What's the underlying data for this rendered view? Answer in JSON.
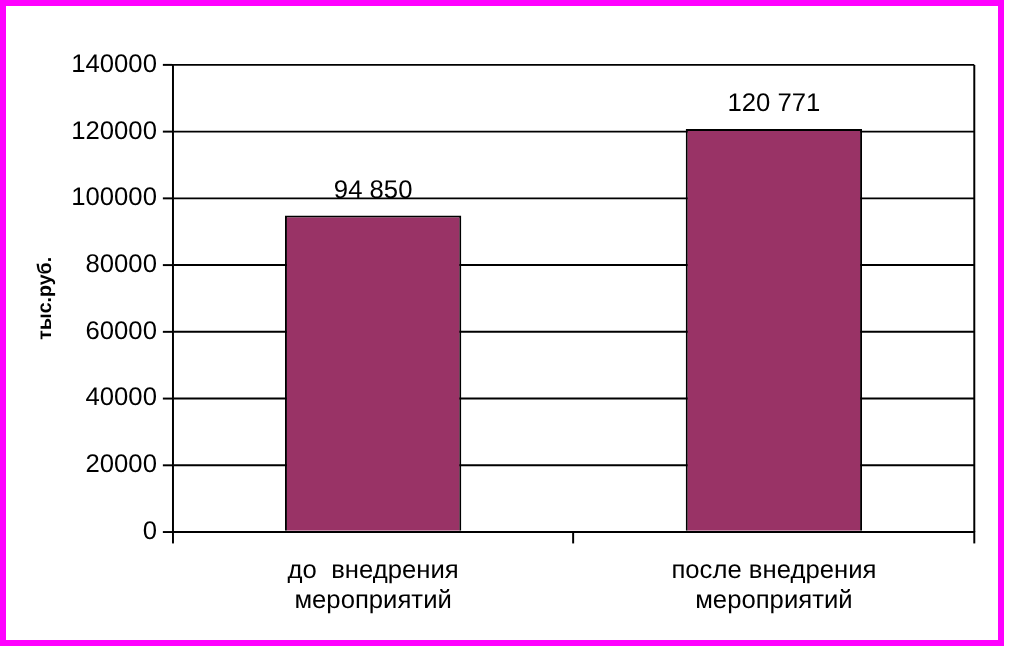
{
  "chart_data": {
    "type": "bar",
    "ylabel": "тыс.руб.",
    "categories": [
      "до  внедрения мероприятий",
      "после внедрения мероприятий"
    ],
    "values": [
      94850,
      120771
    ],
    "value_labels": [
      "94 850",
      "120 771"
    ],
    "color": "#993366",
    "ylim": [
      0,
      140000
    ],
    "yticks": [
      0,
      20000,
      40000,
      60000,
      80000,
      100000,
      120000,
      140000
    ],
    "grid": "y"
  }
}
